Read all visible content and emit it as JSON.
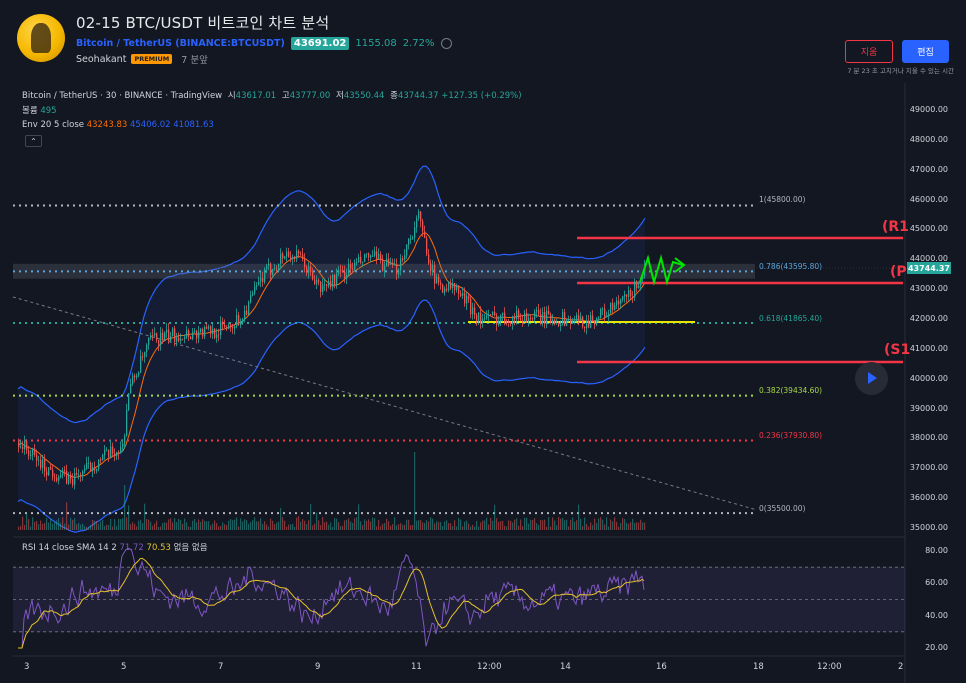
{
  "header": {
    "title": "02-15 BTC/USDT 비트코인 차트 분석",
    "symbol_link": "Bitcoin / TetherUS",
    "exchange_link": "BINANCE:BTCUSDT",
    "price": "43691.02",
    "change_abs": "1155.08",
    "change_pct": "2.72%",
    "author": "Seohakant",
    "premium_badge": "PREMIUM",
    "posted_ago": "7 분앞",
    "delete_label": "지움",
    "edit_label": "편집",
    "edit_note": "7 분 23 초 고치거나 지울 수 있는 시간"
  },
  "legend": {
    "title": "Bitcoin / TetherUS · 30 · BINANCE · TradingView",
    "o_label": "시",
    "o": "43617.01",
    "h_label": "고",
    "h": "43777.00",
    "l_label": "저",
    "l": "43550.44",
    "c_label": "종",
    "c": "43744.37",
    "change": "+127.35 (+0.29%)",
    "volume_label": "볼륨",
    "volume": "495",
    "env_label": "Env 20 5 close",
    "env1": "43243.83",
    "env2": "45406.02",
    "env3": "41081.63",
    "collapse": "⌃",
    "rsi_label": "RSI 14 close SMA 14 2",
    "rsi_value": "71.72",
    "rsi_sma": "70.53",
    "rsi_extra": "없음 없음"
  },
  "y_axis": [
    "49000.00",
    "48000.00",
    "47000.00",
    "46000.00",
    "45000.00",
    "44000.00",
    "43000.00",
    "42000.00",
    "41000.00",
    "40000.00",
    "39000.00",
    "38000.00",
    "37000.00",
    "36000.00",
    "35000.00"
  ],
  "rsi_axis": [
    "80.00",
    "60.00",
    "40.00",
    "20.00"
  ],
  "x_axis": [
    "3",
    "5",
    "7",
    "9",
    "11",
    "12:00",
    "14",
    "16",
    "18",
    "12:00",
    "2"
  ],
  "current_price": "43744.37",
  "fib": [
    {
      "label": "1(45800.00)",
      "color": "#b2b5be"
    },
    {
      "label": "0.786(43595.80)",
      "color": "#5ba4d9"
    },
    {
      "label": "0.618(41865.40)",
      "color": "#26a69a"
    },
    {
      "label": "0.382(39434.60)",
      "color": "#a5d64a"
    },
    {
      "label": "0.236(37930.80)",
      "color": "#f23645"
    },
    {
      "label": "0(35500.00)",
      "color": "#b2b5be"
    }
  ],
  "levels": {
    "r1": "(R1",
    "p": "(P",
    "s1": "(S1"
  },
  "colors": {
    "up": "#26a69a",
    "down": "#ef5350",
    "accent": "#2962ff",
    "band": "#2962ff",
    "basis": "#ff6d00",
    "rsi": "#7e57c2",
    "rsi_sma": "#e6c229"
  }
}
